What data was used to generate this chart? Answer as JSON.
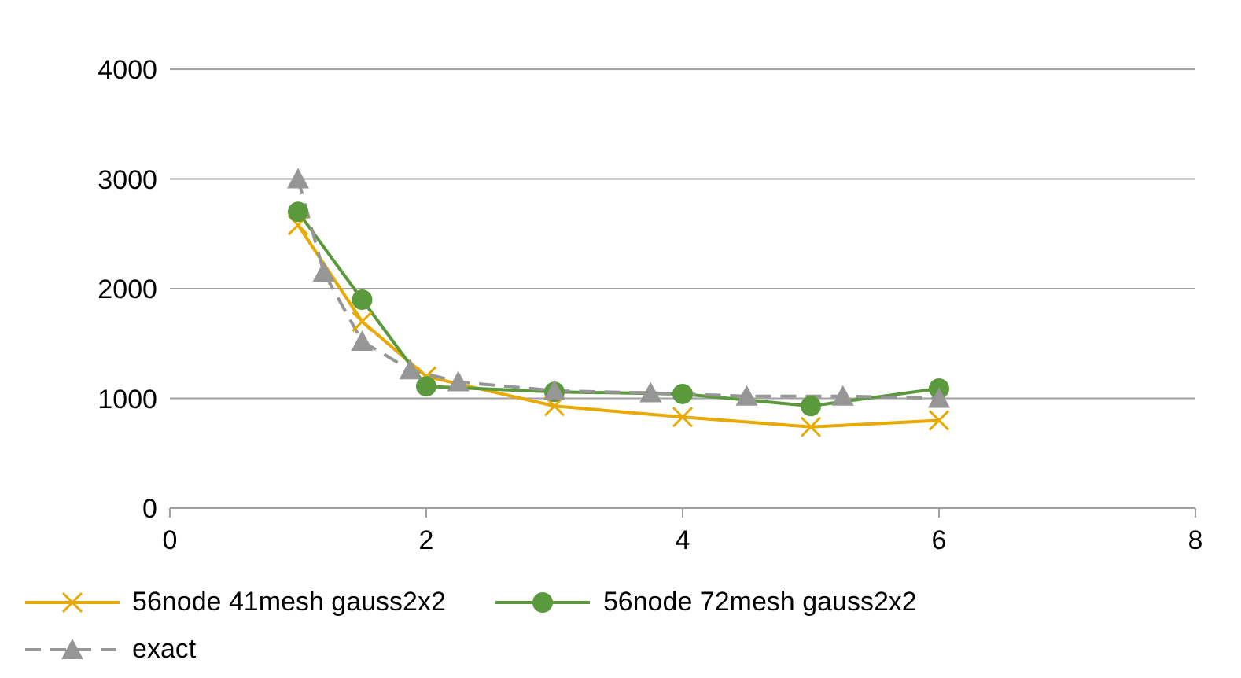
{
  "chart_data": {
    "type": "line",
    "xlim": [
      0,
      8
    ],
    "xticks": [
      0,
      2,
      4,
      6,
      8
    ],
    "ylim": [
      0,
      4000
    ],
    "yticks": [
      0,
      1000,
      2000,
      3000,
      4000
    ],
    "grid": "y",
    "legend": "bottom",
    "series": [
      {
        "name": "56node 41mesh gauss2x2",
        "color": "#e8a900",
        "marker": "cross",
        "line_style": "solid",
        "x": [
          1,
          1.5,
          2,
          3,
          4,
          5,
          6
        ],
        "values": [
          2580,
          1700,
          1200,
          930,
          830,
          740,
          800
        ]
      },
      {
        "name": "56node 72mesh gauss2x2",
        "color": "#5b9a3c",
        "marker": "circle",
        "line_style": "solid",
        "x": [
          1,
          1.5,
          2,
          3,
          4,
          5,
          6
        ],
        "values": [
          2700,
          1900,
          1110,
          1060,
          1040,
          930,
          1090
        ]
      },
      {
        "name": "exact",
        "color": "#969696",
        "marker": "triangle",
        "line_style": "dashed",
        "x": [
          1,
          1.2,
          1.5,
          1.875,
          2.25,
          3,
          3.75,
          4.5,
          5.25,
          6
        ],
        "values": [
          3000,
          2150,
          1520,
          1260,
          1150,
          1070,
          1050,
          1020,
          1020,
          1000
        ]
      }
    ]
  }
}
